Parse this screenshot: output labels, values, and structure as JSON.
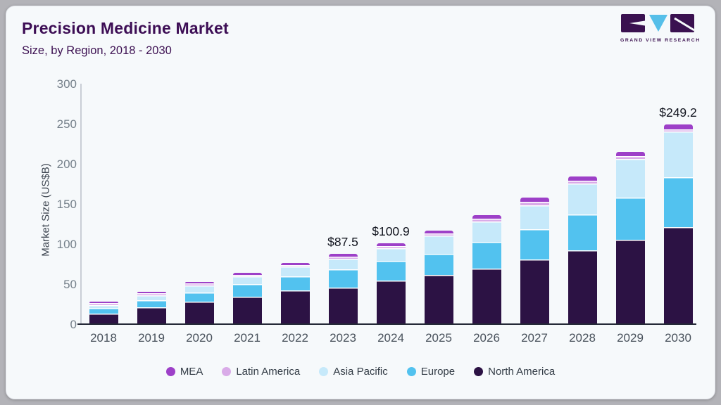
{
  "header": {
    "title": "Precision Medicine Market",
    "subtitle": "Size, by Region, 2018 - 2030"
  },
  "logo": {
    "brand": "GRAND VIEW RESEARCH",
    "mark_colors": {
      "blocks": "#3a1150",
      "triangle": "#56bfe9"
    }
  },
  "chart_data": {
    "type": "bar",
    "stacked": true,
    "title": "Precision Medicine Market Size, by Region, 2018 - 2030",
    "xlabel": "",
    "ylabel": "Market Size (US$B)",
    "ylim": [
      0,
      300
    ],
    "yticks": [
      0,
      50,
      100,
      150,
      200,
      250,
      300
    ],
    "grid": false,
    "legend_position": "bottom",
    "categories": [
      "2018",
      "2019",
      "2020",
      "2021",
      "2022",
      "2023",
      "2024",
      "2025",
      "2026",
      "2027",
      "2028",
      "2029",
      "2030"
    ],
    "series": [
      {
        "name": "North America",
        "color": "#2c1244",
        "values": [
          13.5,
          21.5,
          28,
          34.5,
          42,
          46,
          54,
          61,
          69.5,
          80.5,
          92,
          105,
          121
        ]
      },
      {
        "name": "Europe",
        "color": "#52c2ef",
        "values": [
          7,
          8,
          11.5,
          15.5,
          18,
          22,
          25,
          27,
          33,
          37.5,
          44.5,
          53,
          62
        ]
      },
      {
        "name": "Asia Pacific",
        "color": "#c6e9fa",
        "values": [
          3.5,
          6.5,
          9,
          9.5,
          11.7,
          13.5,
          16,
          22.5,
          26,
          30.5,
          39,
          48,
          57
        ]
      },
      {
        "name": "Latin America",
        "color": "#d9abe8",
        "values": [
          0.8,
          1,
          1.4,
          1.4,
          1.4,
          2.5,
          2.5,
          2.5,
          3,
          4,
          3.5,
          4,
          3.2
        ]
      },
      {
        "name": "MEA",
        "color": "#9d40c8",
        "values": [
          0.8,
          1,
          1.4,
          1.5,
          1.4,
          3.5,
          3.4,
          4,
          4.5,
          5.5,
          5,
          5,
          6
        ]
      }
    ],
    "totals": [
      25.6,
      38,
      51.3,
      62.4,
      74.5,
      87.5,
      100.9,
      117,
      136,
      158,
      184,
      215,
      249.2
    ],
    "value_labels": [
      {
        "category": "2023",
        "text": "$87.5"
      },
      {
        "category": "2024",
        "text": "$100.9"
      },
      {
        "category": "2030",
        "text": "$249.2"
      }
    ],
    "legend_order": [
      "MEA",
      "Latin America",
      "Asia Pacific",
      "Europe",
      "North America"
    ]
  }
}
